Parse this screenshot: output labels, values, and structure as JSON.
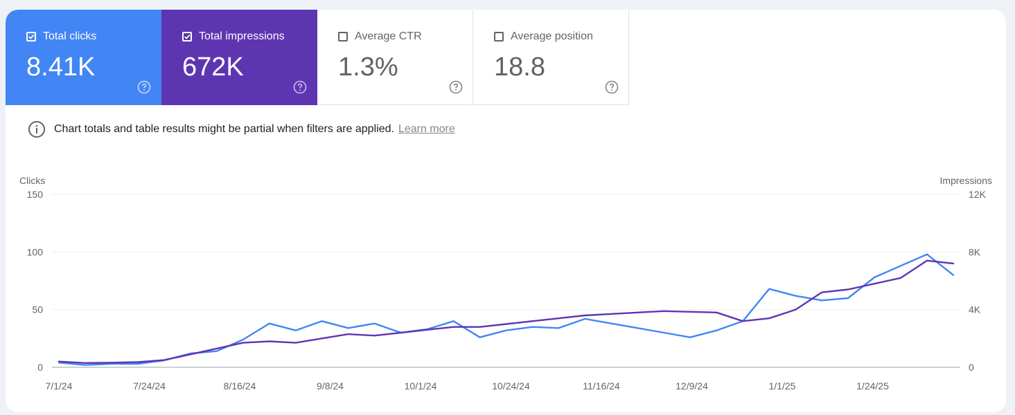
{
  "metrics": [
    {
      "label": "Total clicks",
      "value": "8.41K",
      "checked": true,
      "color": "#4285f4"
    },
    {
      "label": "Total impressions",
      "value": "672K",
      "checked": true,
      "color": "#5e35b1"
    },
    {
      "label": "Average CTR",
      "value": "1.3%",
      "checked": false
    },
    {
      "label": "Average position",
      "value": "18.8",
      "checked": false
    }
  ],
  "notice": {
    "text": "Chart totals and table results might be partial when filters are applied.",
    "link": "Learn more"
  },
  "chart_data": {
    "type": "line",
    "ylabel_left": "Clicks",
    "ylabel_right": "Impressions",
    "y_left_ticks": [
      "0",
      "50",
      "100",
      "150"
    ],
    "y_right_ticks": [
      "0",
      "4K",
      "8K",
      "12K"
    ],
    "ylim_left": [
      0,
      150
    ],
    "ylim_right": [
      0,
      12000
    ],
    "x_ticks": [
      "7/1/24",
      "7/24/24",
      "8/16/24",
      "9/8/24",
      "10/1/24",
      "10/24/24",
      "11/16/24",
      "12/9/24",
      "1/1/25",
      "1/24/25"
    ],
    "x_dates": [
      "2024-07-01",
      "2024-07-08",
      "2024-07-15",
      "2024-07-22",
      "2024-07-29",
      "2024-08-05",
      "2024-08-12",
      "2024-08-19",
      "2024-08-26",
      "2024-09-02",
      "2024-09-09",
      "2024-09-16",
      "2024-09-23",
      "2024-09-30",
      "2024-10-07",
      "2024-10-14",
      "2024-10-21",
      "2024-10-28",
      "2024-11-04",
      "2024-11-11",
      "2024-11-18",
      "2024-11-25",
      "2024-12-02",
      "2024-12-09",
      "2024-12-16",
      "2024-12-23",
      "2024-12-30",
      "2025-01-06",
      "2025-01-13",
      "2025-01-20",
      "2025-01-27",
      "2025-02-03",
      "2025-02-10",
      "2025-02-17",
      "2025-02-24"
    ],
    "grid": true,
    "series": [
      {
        "name": "Clicks",
        "axis": "left",
        "color": "#4285f4",
        "values": [
          4,
          2,
          3,
          3,
          6,
          12,
          14,
          24,
          38,
          32,
          40,
          34,
          38,
          30,
          33,
          40,
          26,
          32,
          35,
          34,
          42,
          38,
          34,
          30,
          26,
          32,
          40,
          68,
          62,
          58,
          60,
          78,
          88,
          98,
          80
        ]
      },
      {
        "name": "Impressions",
        "axis": "right",
        "color": "#5e35b1",
        "values": [
          400,
          300,
          320,
          360,
          500,
          900,
          1300,
          1700,
          1800,
          1700,
          2000,
          2300,
          2200,
          2400,
          2600,
          2800,
          2800,
          3000,
          3200,
          3400,
          3600,
          3700,
          3800,
          3900,
          3850,
          3800,
          3200,
          3400,
          4000,
          5200,
          5400,
          5800,
          6200,
          7400,
          7200
        ]
      }
    ]
  }
}
